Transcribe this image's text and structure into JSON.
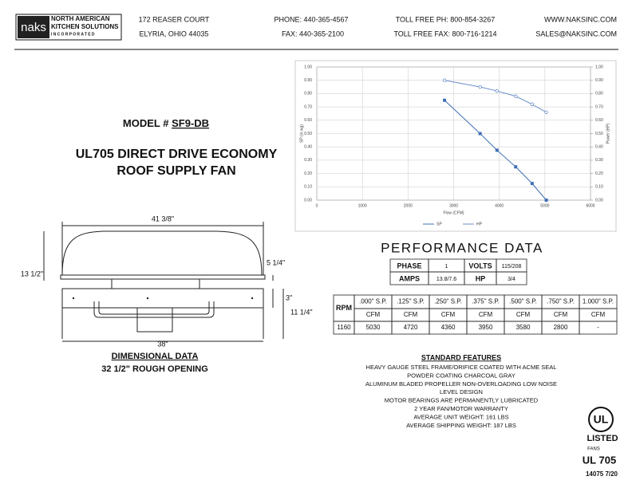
{
  "header": {
    "logo": {
      "mark": "naks",
      "name_lines": [
        "NORTH AMERICAN",
        "KITCHEN SOLUTIONS",
        "INCORPORATED"
      ]
    },
    "address": [
      "172 REASER COURT",
      "ELYRIA, OHIO 44035"
    ],
    "phone": [
      "PHONE: 440-365-4567",
      "FAX: 440-365-2100"
    ],
    "toll_free": [
      "TOLL FREE PH: 800-854-3267",
      "TOLL FREE FAX: 800-716-1214"
    ],
    "web": [
      "WWW.NAKSINC.COM",
      "SALES@NAKSINC.COM"
    ]
  },
  "model": {
    "label": "MODEL #",
    "number": "SF9-DB"
  },
  "title_lines": [
    "UL705 DIRECT DRIVE ECONOMY",
    "ROOF SUPPLY FAN"
  ],
  "dimensions": {
    "overall_width": "41 3/8\"",
    "hood_height": "13 1/2\"",
    "flange_height": "5 1/4\"",
    "base_height": "3\"",
    "curb_height": "11 1/4\"",
    "base_width": "38\"",
    "caption": "DIMENSIONAL DATA",
    "rough_opening": "32 1/2\" ROUGH OPENING"
  },
  "chart_data": {
    "type": "line",
    "x_label": "Flow (CFM)",
    "y_label": "SP (in wg)",
    "y2_label": "Power (HP)",
    "x": [
      2800,
      3580,
      3950,
      4360,
      4720,
      5030
    ],
    "series": [
      {
        "name": "SP",
        "color": "#3f6fb6",
        "values": [
          0.75,
          0.5,
          0.375,
          0.25,
          0.125,
          0
        ]
      },
      {
        "name": "HP",
        "color": "#6b8fc9",
        "axis": "y2",
        "values": [
          0.9,
          0.85,
          0.82,
          0.78,
          0.72,
          0.66
        ]
      }
    ],
    "xlim": [
      0,
      6000
    ],
    "xticks": [
      0,
      1000,
      2000,
      3000,
      4000,
      5000,
      6000
    ],
    "ylim": [
      0,
      1
    ],
    "yticks": [
      {
        "value": 0,
        "label": "0.00"
      },
      {
        "value": 0.1,
        "label": "0.10"
      },
      {
        "value": 0.2,
        "label": "0.20"
      },
      {
        "value": 0.3,
        "label": "0.30"
      },
      {
        "value": 0.4,
        "label": "0.40"
      },
      {
        "value": 0.5,
        "label": "0.50"
      },
      {
        "value": 0.6,
        "label": "0.60"
      },
      {
        "value": 0.7,
        "label": "0.70"
      },
      {
        "value": 0.8,
        "label": "0.80"
      },
      {
        "value": 0.9,
        "label": "0.90"
      },
      {
        "value": 1,
        "label": "1.00"
      }
    ],
    "y2lim": [
      0,
      1
    ],
    "y2ticks": [
      {
        "value": 0,
        "label": "0.00"
      },
      {
        "value": 0.1,
        "label": "0.10"
      },
      {
        "value": 0.2,
        "label": "0.20"
      },
      {
        "value": 0.3,
        "label": "0.30"
      },
      {
        "value": 0.4,
        "label": "0.40"
      },
      {
        "value": 0.5,
        "label": "0.50"
      },
      {
        "value": 0.6,
        "label": "0.60"
      },
      {
        "value": 0.7,
        "label": "0.70"
      },
      {
        "value": 0.8,
        "label": "0.80"
      },
      {
        "value": 0.9,
        "label": "0.90"
      },
      {
        "value": 1,
        "label": "1.00"
      }
    ],
    "grid": true,
    "legend": "bottom"
  },
  "performance": {
    "title": "PERFORMANCE DATA",
    "electrical": [
      [
        "PHASE",
        "1",
        "VOLTS",
        "115/208"
      ],
      [
        "AMPS",
        "13.8/7.6",
        "HP",
        "3/4"
      ]
    ],
    "table": {
      "rpm_header": "RPM",
      "headers": [
        ".000\" S.P.",
        ".125\" S.P.",
        ".250\" S.P.",
        ".375\" S.P.",
        ".500\" S.P.",
        ".750\" S.P.",
        "1.000\" S.P."
      ],
      "units": [
        "CFM",
        "CFM",
        "CFM",
        "CFM",
        "CFM",
        "CFM",
        "CFM"
      ],
      "rows": [
        [
          "1160",
          "5030",
          "4720",
          "4360",
          "3950",
          "3580",
          "2800",
          "-"
        ]
      ]
    }
  },
  "standard_features": {
    "title": "STANDARD FEATURES",
    "items": [
      "HEAVY GAUGE STEEL FRAME/ORIFICE COATED WITH ACME SEAL",
      "POWDER COATING CHARCOAL GRAY",
      "ALUMINUM BLADED PROPELLER NON-OVERLOADING LOW NOISE",
      "LEVEL DESIGN",
      "MOTOR BEARINGS ARE PERMANENTLY LUBRICATED",
      "2 YEAR FAN/MOTOR WARRANTY",
      "AVERAGE UNIT WEIGHT: 161 LBS",
      "AVERAGE SHIPPING WEIGHT: 187 LBS"
    ]
  },
  "certification": {
    "mark": "UL",
    "listed": "LISTED",
    "category": "FANS",
    "standard": "UL 705",
    "doc_number": "14075 7/20"
  }
}
